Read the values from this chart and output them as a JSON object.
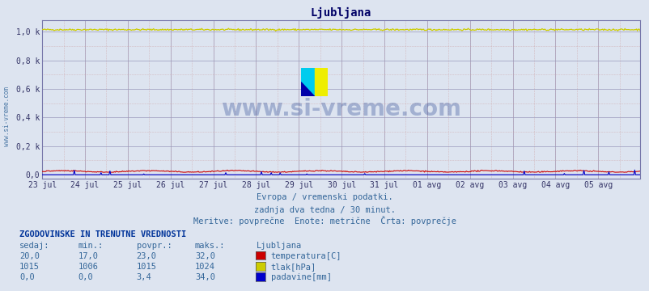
{
  "title": "Ljubljana",
  "bg_color": "#dde4f0",
  "plot_bg_color": "#dde4f0",
  "grid_color_major": "#9999bb",
  "grid_color_minor": "#cc9999",
  "border_color": "#7777aa",
  "ylabel_ticks": [
    "0,0",
    "0,2 k",
    "0,4 k",
    "0,6 k",
    "0,8 k",
    "1,0 k"
  ],
  "ytick_values": [
    0,
    200,
    400,
    600,
    800,
    1000
  ],
  "ymin": -30,
  "ymax": 1080,
  "xlabels": [
    "23 jul",
    "24 jul",
    "25 jul",
    "26 jul",
    "27 jul",
    "28 jul",
    "29 jul",
    "30 jul",
    "31 jul",
    "01 avg",
    "02 avg",
    "03 avg",
    "04 avg",
    "05 avg"
  ],
  "n_points": 672,
  "temp_color": "#cc0000",
  "pressure_color": "#cccc00",
  "rain_color": "#0000cc",
  "watermark_text": "www.si-vreme.com",
  "watermark_color": "#1a3a8a",
  "watermark_alpha": 0.3,
  "sidebar_text": "www.si-vreme.com",
  "sidebar_color": "#336699",
  "footer_line1": "Evropa / vremenski podatki.",
  "footer_line2": "zadnja dva tedna / 30 minut.",
  "footer_line3": "Meritve: povprečne  Enote: metrične  Črta: povprečje",
  "footer_color": "#336699",
  "table_header": "ZGODOVINSKE IN TRENUTNE VREDNOSTI",
  "table_col1": "sedaj:",
  "table_col2": "min.:",
  "table_col3": "povpr.:",
  "table_col4": "maks.:",
  "table_col5": "Ljubljana",
  "row1": [
    "20,0",
    "17,0",
    "23,0",
    "32,0",
    "temperatura[C]"
  ],
  "row2": [
    "1015",
    "1006",
    "1015",
    "1024",
    "tlak[hPa]"
  ],
  "row3": [
    "0,0",
    "0,0",
    "3,4",
    "34,0",
    "padavine[mm]"
  ],
  "box_temp_color": "#cc0000",
  "box_pressure_color": "#cccc00",
  "box_rain_color": "#0000cc",
  "table_text_color": "#336699",
  "table_header_color": "#003399"
}
